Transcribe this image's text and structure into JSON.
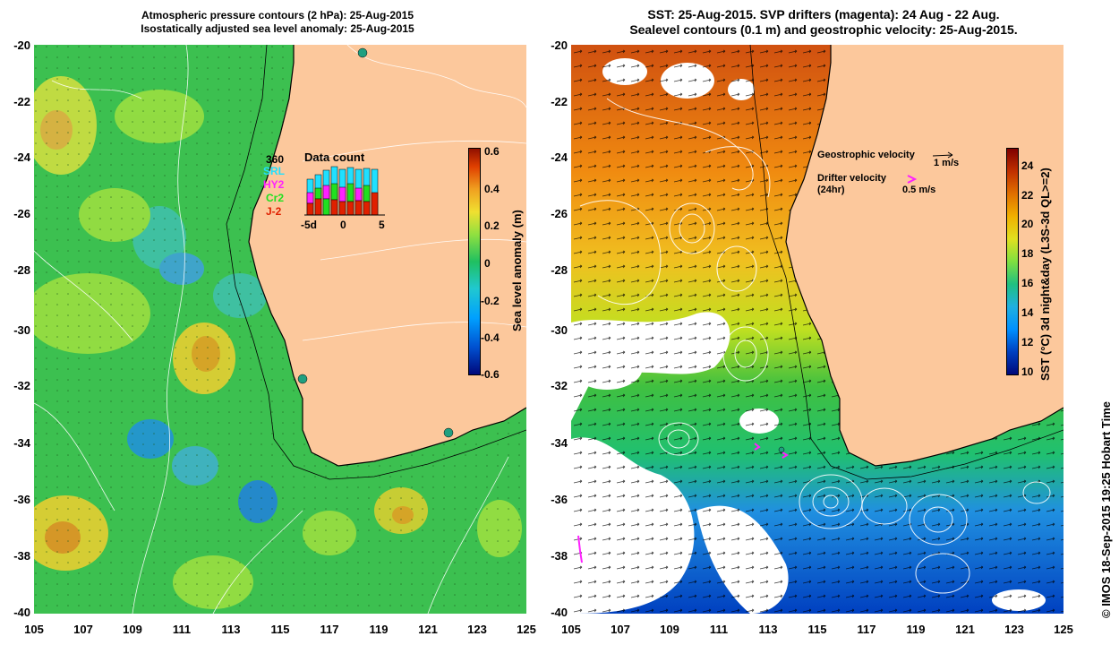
{
  "left_panel": {
    "title_line1": "Atmospheric pressure contours (2 hPa): 25-Aug-2015",
    "title_line2": "Isostatically adjusted sea level anomaly: 25-Aug-2015",
    "colorbar_label": "Sea level anomaly (m)",
    "colorbar_ticks": [
      "0.6",
      "0.4",
      "0.2",
      "0",
      "-0.2",
      "-0.4",
      "-0.6"
    ],
    "data_count": {
      "title": "Data count",
      "satellites": [
        "360",
        "SRL",
        "HY2",
        "Cr2",
        "J-2"
      ],
      "satellite_colors": [
        "#000000",
        "#20e0ff",
        "#ff20ff",
        "#20e020",
        "#e02000"
      ],
      "axis_ticks": [
        "-5d",
        "0",
        "5"
      ]
    }
  },
  "right_panel": {
    "title_line1": "SST: 25-Aug-2015. SVP drifters (magenta): 24 Aug - 22 Aug.",
    "title_line2": "Sealevel contours (0.1 m) and geostrophic velocity: 25-Aug-2015.",
    "colorbar_label": "SST (°C) 3d night&day (L3S-3d QL>=2)",
    "colorbar_ticks": [
      "24",
      "22",
      "20",
      "18",
      "16",
      "14",
      "12",
      "10"
    ],
    "geostrophic_label": "Geostrophic velocity",
    "geostrophic_scale": "1 m/s",
    "drifter_label": "Drifter velocity",
    "drifter_period": "(24hr)",
    "drifter_scale": "0.5 m/s"
  },
  "axes": {
    "y_ticks": [
      "-20",
      "-22",
      "-24",
      "-26",
      "-28",
      "-30",
      "-32",
      "-34",
      "-36",
      "-38",
      "-40"
    ],
    "x_ticks": [
      "105",
      "107",
      "109",
      "111",
      "113",
      "115",
      "117",
      "119",
      "121",
      "123",
      "125"
    ]
  },
  "credit": "© IMOS 18-Sep-2015 19:25 Hobart Time",
  "colors": {
    "land": "#fcc89c",
    "ocean_green": "#3cc050",
    "coast": "#000000"
  }
}
